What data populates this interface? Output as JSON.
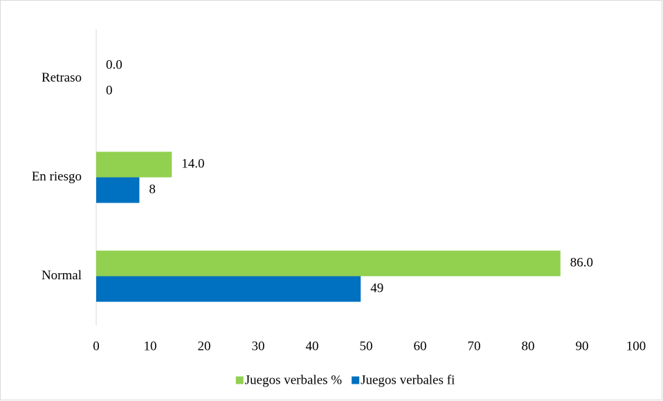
{
  "chart_data": {
    "type": "barh",
    "categories": [
      "Retraso",
      "En riesgo",
      "Normal"
    ],
    "series": [
      {
        "name": "Juegos verbales %",
        "color": "#92d050",
        "values": [
          0.0,
          14.0,
          86.0
        ],
        "value_labels": [
          "0.0",
          "14.0",
          "86.0"
        ]
      },
      {
        "name": "Juegos verbales fi",
        "color": "#0070c0",
        "values": [
          0,
          8,
          49
        ]
      }
    ],
    "xlim": [
      0,
      100
    ],
    "xticks": [
      0,
      10,
      20,
      30,
      40,
      50,
      60,
      70,
      80,
      90,
      100
    ],
    "grid": false,
    "legend": "bottom"
  }
}
